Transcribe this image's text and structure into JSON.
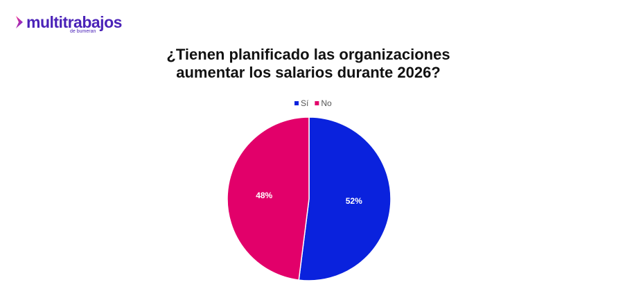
{
  "logo": {
    "name": "multitrabajos",
    "tagline": "de bumeran"
  },
  "chart_data": {
    "type": "pie",
    "title": "¿Tienen planificado las organizaciones aumentar los salarios durante 2026?",
    "categories": [
      "Sí",
      "No"
    ],
    "values": [
      52,
      48
    ],
    "value_labels": [
      "52%",
      "48%"
    ],
    "colors": [
      "#0a22dd",
      "#e2006a"
    ],
    "legend": "top"
  }
}
